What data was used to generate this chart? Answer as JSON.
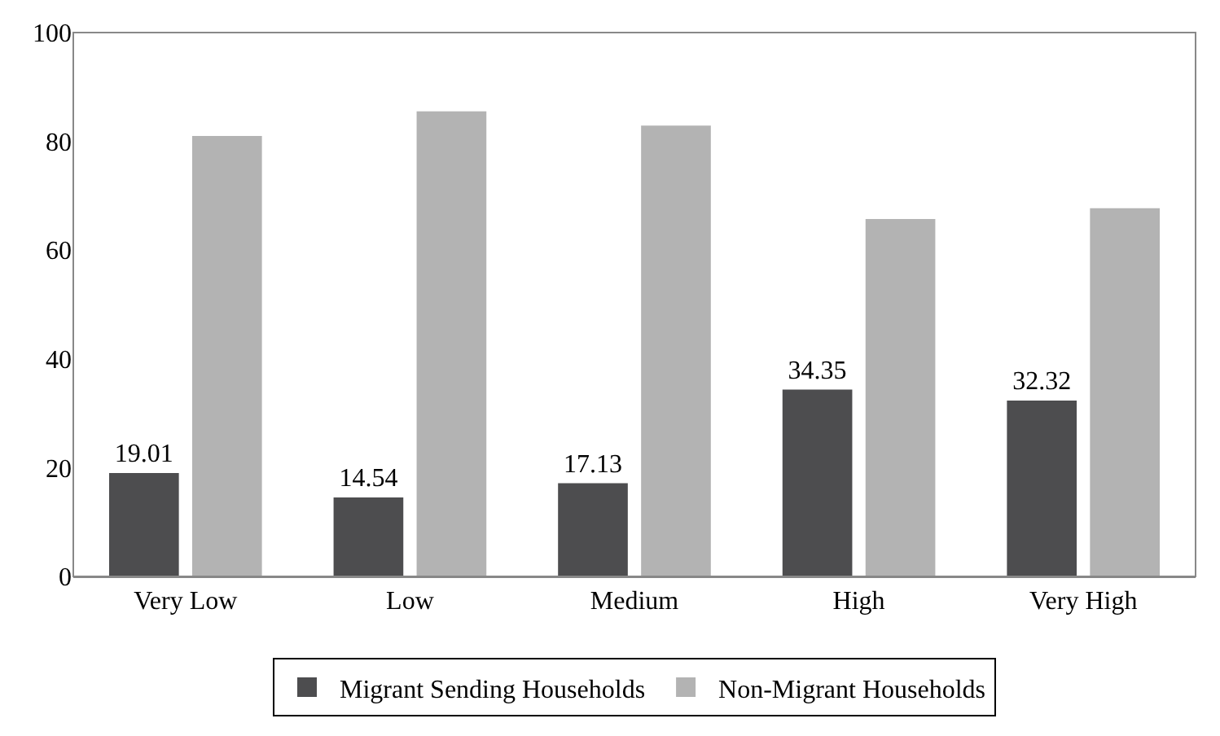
{
  "chart_data": {
    "type": "bar",
    "categories": [
      "Very Low",
      "Low",
      "Medium",
      "High",
      "Very High"
    ],
    "series": [
      {
        "name": "Migrant Sending Households",
        "color": "#4d4d4f",
        "values": [
          19.01,
          14.54,
          17.13,
          34.35,
          32.32
        ],
        "value_labels": [
          "19.01",
          "14.54",
          "17.13",
          "34.35",
          "32.32"
        ]
      },
      {
        "name": "Non-Migrant Households",
        "color": "#b3b3b3",
        "values": [
          81,
          85.5,
          82.9,
          65.7,
          67.7
        ]
      }
    ],
    "ylim": [
      0,
      100
    ],
    "yticks": [
      0,
      20,
      40,
      60,
      80,
      100
    ],
    "legend": "bottom"
  }
}
